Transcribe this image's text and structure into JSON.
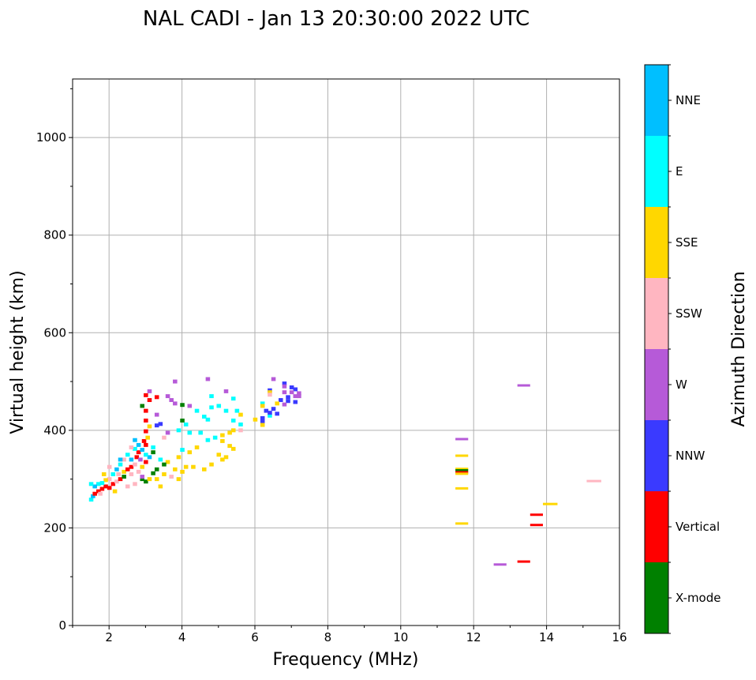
{
  "chart_data": {
    "type": "scatter",
    "title": "NAL CADI - Jan 13 20:30:00 2022 UTC",
    "xlabel": "Frequency (MHz)",
    "ylabel": "Virtual height (km)",
    "xlim": [
      1,
      16
    ],
    "ylim": [
      0,
      1120
    ],
    "xticks": [
      2,
      4,
      6,
      8,
      10,
      12,
      14,
      16
    ],
    "yticks": [
      0,
      200,
      400,
      600,
      800,
      1000
    ],
    "grid": true,
    "colorbar": {
      "label": "Azimuth Direction",
      "categories": [
        {
          "name": "X-mode",
          "color": "#008000"
        },
        {
          "name": "Vertical",
          "color": "#ff0000"
        },
        {
          "name": "NNW",
          "color": "#3a3aff"
        },
        {
          "name": "W",
          "color": "#b65ad8"
        },
        {
          "name": "SSW",
          "color": "#ffb6c1"
        },
        {
          "name": "SSE",
          "color": "#ffd700"
        },
        {
          "name": "E",
          "color": "#00ffff"
        },
        {
          "name": "NNE",
          "color": "#00bfff"
        }
      ]
    },
    "point_fields": [
      "frequency_mhz",
      "height_km",
      "category_index"
    ],
    "points": [
      [
        6.5,
        505,
        3
      ],
      [
        6.4,
        482,
        2
      ],
      [
        6.4,
        478,
        5
      ],
      [
        6.4,
        473,
        4
      ],
      [
        6.8,
        496,
        2
      ],
      [
        6.8,
        490,
        3
      ],
      [
        7.0,
        488,
        2
      ],
      [
        7.1,
        484,
        2
      ],
      [
        6.8,
        478,
        3
      ],
      [
        7.0,
        478,
        3
      ],
      [
        7.2,
        476,
        3
      ],
      [
        7.1,
        470,
        3
      ],
      [
        6.9,
        468,
        2
      ],
      [
        6.7,
        462,
        2
      ],
      [
        6.9,
        460,
        2
      ],
      [
        7.1,
        458,
        2
      ],
      [
        6.6,
        455,
        5
      ],
      [
        6.8,
        453,
        3
      ],
      [
        6.2,
        455,
        6
      ],
      [
        6.2,
        450,
        5
      ],
      [
        6.3,
        440,
        2
      ],
      [
        6.5,
        444,
        2
      ],
      [
        6.6,
        434,
        2
      ],
      [
        6.4,
        430,
        6
      ],
      [
        6.2,
        425,
        2
      ],
      [
        6.2,
        418,
        2
      ],
      [
        6.0,
        422,
        5
      ],
      [
        6.2,
        411,
        5
      ],
      [
        7.2,
        470,
        3
      ],
      [
        6.4,
        436,
        2
      ],
      [
        3.8,
        500,
        3
      ],
      [
        4.7,
        505,
        3
      ],
      [
        3.6,
        470,
        3
      ],
      [
        3.3,
        468,
        1
      ],
      [
        3.0,
        472,
        1
      ],
      [
        3.1,
        480,
        3
      ],
      [
        3.1,
        462,
        1
      ],
      [
        3.7,
        462,
        3
      ],
      [
        3.8,
        455,
        3
      ],
      [
        4.0,
        452,
        0
      ],
      [
        4.2,
        450,
        3
      ],
      [
        4.4,
        440,
        6
      ],
      [
        4.8,
        447,
        6
      ],
      [
        5.2,
        480,
        3
      ],
      [
        4.8,
        470,
        6
      ],
      [
        5.4,
        465,
        6
      ],
      [
        5.0,
        450,
        6
      ],
      [
        5.2,
        440,
        6
      ],
      [
        5.5,
        440,
        6
      ],
      [
        5.6,
        432,
        5
      ],
      [
        5.4,
        420,
        6
      ],
      [
        5.6,
        412,
        6
      ],
      [
        4.6,
        428,
        6
      ],
      [
        4.7,
        422,
        6
      ],
      [
        4.0,
        420,
        0
      ],
      [
        4.1,
        412,
        6
      ],
      [
        3.9,
        400,
        6
      ],
      [
        4.2,
        395,
        6
      ],
      [
        4.5,
        395,
        6
      ],
      [
        4.7,
        380,
        6
      ],
      [
        4.9,
        385,
        6
      ],
      [
        5.1,
        390,
        5
      ],
      [
        5.3,
        395,
        5
      ],
      [
        5.4,
        400,
        5
      ],
      [
        5.6,
        400,
        4
      ],
      [
        5.1,
        378,
        5
      ],
      [
        5.3,
        368,
        5
      ],
      [
        5.4,
        362,
        5
      ],
      [
        5.0,
        350,
        5
      ],
      [
        5.2,
        345,
        5
      ],
      [
        5.1,
        340,
        5
      ],
      [
        4.8,
        330,
        5
      ],
      [
        4.6,
        320,
        5
      ],
      [
        4.3,
        325,
        5
      ],
      [
        4.4,
        365,
        5
      ],
      [
        4.2,
        355,
        5
      ],
      [
        4.0,
        360,
        6
      ],
      [
        3.9,
        345,
        5
      ],
      [
        4.1,
        325,
        5
      ],
      [
        4.0,
        315,
        5
      ],
      [
        3.9,
        300,
        5
      ],
      [
        3.8,
        320,
        5
      ],
      [
        3.6,
        335,
        5
      ],
      [
        3.4,
        340,
        6
      ],
      [
        3.5,
        330,
        0
      ],
      [
        3.3,
        320,
        0
      ],
      [
        3.2,
        312,
        0
      ],
      [
        3.5,
        310,
        5
      ],
      [
        3.7,
        305,
        4
      ],
      [
        3.3,
        300,
        5
      ],
      [
        3.4,
        285,
        5
      ],
      [
        3.0,
        295,
        0
      ],
      [
        2.9,
        300,
        0
      ],
      [
        3.2,
        355,
        0
      ],
      [
        3.5,
        385,
        4
      ],
      [
        3.6,
        395,
        3
      ],
      [
        3.4,
        413,
        2
      ],
      [
        3.0,
        420,
        1
      ],
      [
        3.3,
        432,
        3
      ],
      [
        3.0,
        440,
        1
      ],
      [
        2.9,
        450,
        0
      ],
      [
        3.3,
        410,
        2
      ],
      [
        3.0,
        398,
        1
      ],
      [
        3.1,
        408,
        5
      ],
      [
        1.5,
        258,
        6
      ],
      [
        1.55,
        265,
        7
      ],
      [
        1.6,
        270,
        1
      ],
      [
        1.7,
        275,
        1
      ],
      [
        1.8,
        280,
        1
      ],
      [
        1.75,
        270,
        4
      ],
      [
        1.9,
        285,
        1
      ],
      [
        2.0,
        282,
        1
      ],
      [
        2.1,
        290,
        1
      ],
      [
        2.2,
        295,
        4
      ],
      [
        2.3,
        300,
        1
      ],
      [
        2.25,
        310,
        4
      ],
      [
        2.4,
        315,
        5
      ],
      [
        2.5,
        320,
        1
      ],
      [
        2.6,
        325,
        1
      ],
      [
        2.7,
        330,
        4
      ],
      [
        2.6,
        340,
        7
      ],
      [
        2.75,
        345,
        1
      ],
      [
        2.8,
        355,
        1
      ],
      [
        2.9,
        360,
        7
      ],
      [
        3.0,
        370,
        1
      ],
      [
        2.95,
        378,
        1
      ],
      [
        3.05,
        385,
        5
      ],
      [
        2.8,
        370,
        7
      ],
      [
        2.7,
        362,
        6
      ],
      [
        2.5,
        350,
        6
      ],
      [
        2.4,
        340,
        4
      ],
      [
        2.3,
        330,
        6
      ],
      [
        2.2,
        320,
        7
      ],
      [
        2.1,
        310,
        6
      ],
      [
        2.0,
        300,
        4
      ],
      [
        1.9,
        298,
        5
      ],
      [
        1.8,
        292,
        6
      ],
      [
        1.7,
        290,
        6
      ],
      [
        1.6,
        285,
        7
      ],
      [
        1.5,
        290,
        6
      ],
      [
        2.4,
        305,
        0
      ],
      [
        2.6,
        310,
        4
      ],
      [
        2.8,
        315,
        4
      ],
      [
        2.9,
        325,
        5
      ],
      [
        3.0,
        335,
        1
      ],
      [
        3.1,
        345,
        7
      ],
      [
        2.85,
        340,
        3
      ],
      [
        3.0,
        350,
        6
      ],
      [
        3.2,
        365,
        6
      ],
      [
        2.6,
        365,
        4
      ],
      [
        2.7,
        380,
        7
      ],
      [
        2.5,
        285,
        4
      ],
      [
        2.7,
        290,
        4
      ],
      [
        2.9,
        305,
        3
      ],
      [
        3.1,
        300,
        5
      ],
      [
        1.85,
        310,
        5
      ],
      [
        2.3,
        340,
        7
      ],
      [
        2.0,
        325,
        4
      ],
      [
        2.15,
        275,
        5
      ]
    ],
    "trace_fields": [
      "frequency_start_mhz",
      "frequency_end_mhz",
      "height_km",
      "category_index"
    ],
    "traces": [
      [
        11.5,
        11.85,
        382,
        3
      ],
      [
        11.5,
        11.85,
        348,
        5
      ],
      [
        11.5,
        11.85,
        321,
        5
      ],
      [
        11.5,
        11.85,
        318,
        0
      ],
      [
        11.5,
        11.85,
        314,
        1
      ],
      [
        11.5,
        11.85,
        311,
        5
      ],
      [
        11.5,
        11.85,
        281,
        5
      ],
      [
        11.5,
        11.85,
        209,
        5
      ],
      [
        13.2,
        13.55,
        492,
        3
      ],
      [
        12.55,
        12.9,
        125,
        3
      ],
      [
        13.2,
        13.55,
        131,
        1
      ],
      [
        13.55,
        13.9,
        227,
        1
      ],
      [
        13.55,
        13.9,
        206,
        1
      ],
      [
        13.9,
        14.3,
        249,
        5
      ],
      [
        15.1,
        15.5,
        296,
        4
      ]
    ]
  }
}
